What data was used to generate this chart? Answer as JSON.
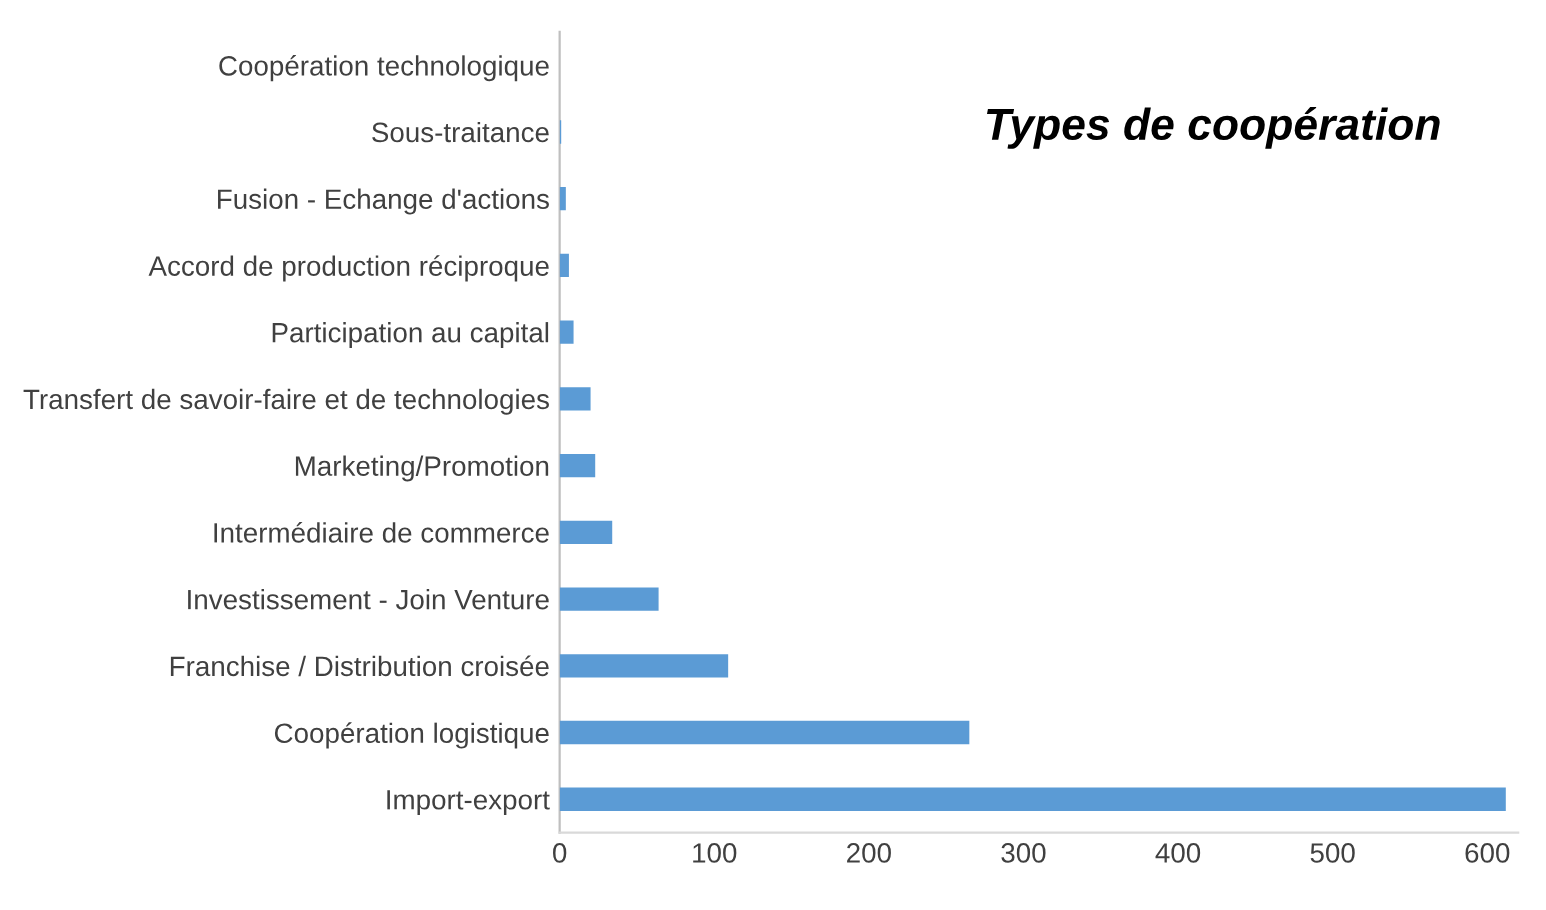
{
  "chart_data": {
    "type": "bar",
    "orientation": "horizontal",
    "title": "Types de coopération",
    "categories": [
      "Coopération technologique",
      "Sous-traitance",
      "Fusion - Echange d'actions",
      "Accord de production réciproque",
      "Participation au capital",
      "Transfert de savoir-faire et de technologies",
      "Marketing/Promotion",
      "Intermédiaire de commerce",
      "Investissement - Join Venture",
      "Franchise / Distribution croisée",
      "Coopération logistique",
      "Import-export"
    ],
    "values": [
      0,
      1,
      4,
      6,
      9,
      20,
      23,
      34,
      64,
      109,
      265,
      612
    ],
    "color": "#5b9bd5",
    "xlim": [
      0,
      620
    ],
    "xticks": [
      0,
      100,
      200,
      300,
      400,
      500,
      600
    ],
    "grid": false,
    "legend": false
  }
}
